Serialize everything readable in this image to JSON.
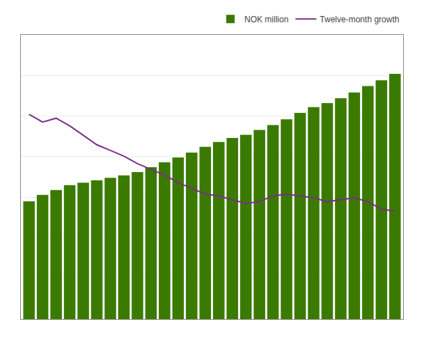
{
  "chart_data": {
    "type": "bar",
    "categories": [
      null,
      null,
      null,
      null,
      null,
      null,
      null,
      null,
      null,
      null,
      null,
      null,
      null,
      null,
      null,
      null,
      null,
      null,
      null,
      null,
      null,
      null,
      null,
      null,
      null,
      null,
      null,
      null
    ],
    "series": [
      {
        "name": "NOK million",
        "type": "bar",
        "color": "#3a7a00",
        "values": [
          1450,
          1530,
          1590,
          1650,
          1680,
          1710,
          1740,
          1770,
          1810,
          1870,
          1930,
          1990,
          2050,
          2120,
          2180,
          2230,
          2270,
          2330,
          2390,
          2460,
          2540,
          2610,
          2660,
          2720,
          2790,
          2870,
          2940,
          3020
        ]
      },
      {
        "name": "Twelve-month growth",
        "type": "line",
        "color": "#7b2d8b",
        "axis": "y2",
        "values": [
          10.8,
          10.4,
          10.6,
          10.2,
          9.7,
          9.2,
          8.9,
          8.6,
          8.2,
          7.9,
          7.6,
          7.2,
          6.9,
          6.6,
          6.5,
          6.3,
          6.1,
          6.2,
          6.5,
          6.6,
          6.5,
          6.4,
          6.2,
          6.3,
          6.4,
          6.2,
          5.8,
          5.7
        ]
      }
    ],
    "ylim": [
      0,
      3500
    ],
    "yticks": [
      0,
      500,
      1000,
      1500,
      2000,
      2500,
      3000,
      3500
    ],
    "y2lim": [
      0,
      15
    ],
    "grid": true,
    "legend": "upper right",
    "tick_labels": false
  }
}
